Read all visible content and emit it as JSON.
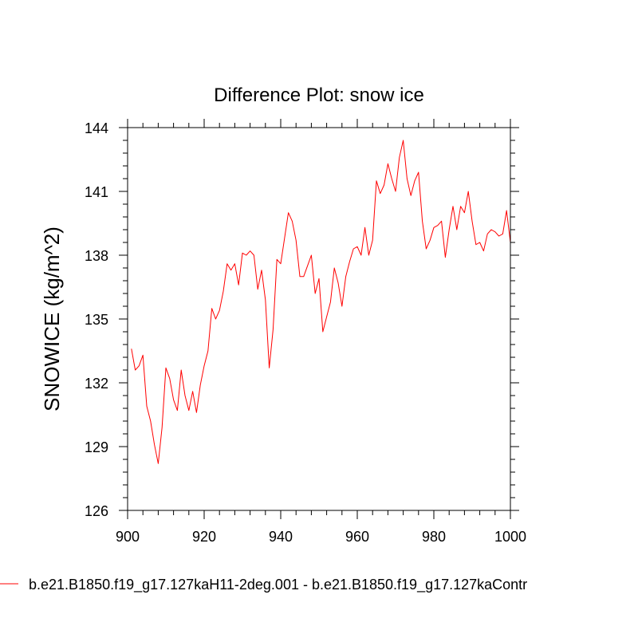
{
  "chart_data": {
    "type": "line",
    "title": "Difference Plot: snow ice",
    "xlabel": "",
    "ylabel": "SNOWICE  (kg/m^2)",
    "xlim": [
      900,
      1000
    ],
    "ylim": [
      126,
      144
    ],
    "xticks": [
      900,
      920,
      940,
      960,
      980,
      1000
    ],
    "yticks": [
      126,
      129,
      132,
      135,
      138,
      141,
      144
    ],
    "legend_position": "bottom",
    "grid": false,
    "series": [
      {
        "name": "b.e21.B1850.f19_g17.127kaH11-2deg.001 - b.e21.B1850.f19_g17.127kaContr",
        "color": "#ff0000",
        "x": [
          901,
          902,
          903,
          904,
          905,
          906,
          907,
          908,
          909,
          910,
          911,
          912,
          913,
          914,
          915,
          916,
          917,
          918,
          919,
          920,
          921,
          922,
          923,
          924,
          925,
          926,
          927,
          928,
          929,
          930,
          931,
          932,
          933,
          934,
          935,
          936,
          937,
          938,
          939,
          940,
          941,
          942,
          943,
          944,
          945,
          946,
          947,
          948,
          949,
          950,
          951,
          952,
          953,
          954,
          955,
          956,
          957,
          958,
          959,
          960,
          961,
          962,
          963,
          964,
          965,
          966,
          967,
          968,
          969,
          970,
          971,
          972,
          973,
          974,
          975,
          976,
          977,
          978,
          979,
          980,
          981,
          982,
          983,
          984,
          985,
          986,
          987,
          988,
          989,
          990,
          991,
          992,
          993,
          994,
          995,
          996,
          997,
          998,
          999,
          1000
        ],
        "y": [
          133.6,
          132.6,
          132.8,
          133.3,
          130.9,
          130.2,
          129.1,
          128.2,
          129.9,
          132.7,
          132.2,
          131.2,
          130.7,
          132.6,
          131.4,
          130.7,
          131.6,
          130.6,
          131.9,
          132.8,
          133.5,
          135.5,
          135.0,
          135.4,
          136.3,
          137.6,
          137.3,
          137.6,
          136.6,
          138.1,
          138.0,
          138.2,
          138.0,
          136.4,
          137.3,
          135.9,
          132.7,
          134.5,
          137.8,
          137.6,
          138.8,
          140.0,
          139.6,
          138.7,
          137.0,
          137.0,
          137.5,
          138.0,
          136.2,
          136.9,
          134.4,
          135.1,
          135.8,
          137.4,
          136.7,
          135.6,
          137.0,
          137.7,
          138.3,
          138.4,
          138.0,
          139.3,
          138.0,
          138.7,
          141.5,
          140.9,
          141.3,
          142.3,
          141.6,
          141.0,
          142.6,
          143.4,
          141.6,
          140.8,
          141.5,
          141.9,
          139.6,
          138.3,
          138.7,
          139.3,
          139.4,
          139.6,
          137.9,
          139.2,
          140.3,
          139.2,
          140.3,
          140.0,
          141.0,
          139.6,
          138.5,
          138.6,
          138.2,
          139.0,
          139.2,
          139.1,
          138.9,
          139.0,
          140.1,
          138.6
        ]
      }
    ]
  }
}
